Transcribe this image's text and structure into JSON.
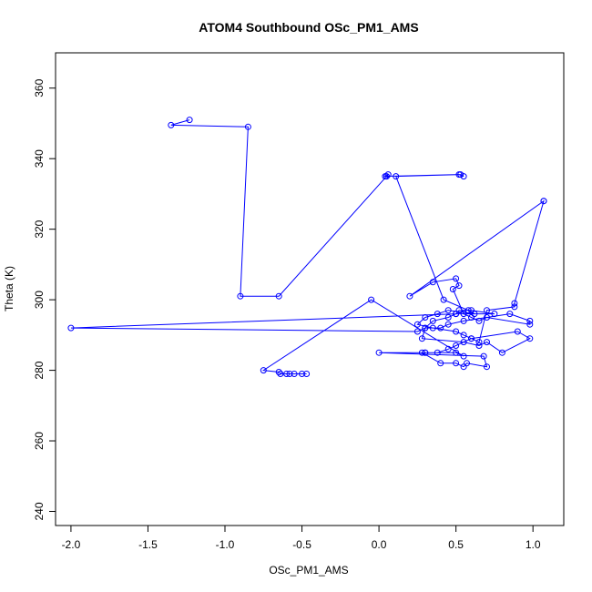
{
  "chart_data": {
    "type": "scatter",
    "title": "ATOM4 Southbound OSc_PM1_AMS",
    "xlabel": "OSc_PM1_AMS",
    "ylabel": "Theta (K)",
    "xlim": [
      -2.1,
      1.2
    ],
    "ylim": [
      236,
      370
    ],
    "x_ticks": [
      -2.0,
      -1.5,
      -1.0,
      -0.5,
      0.0,
      0.5,
      1.0
    ],
    "x_tick_labels": [
      "-2.0",
      "-1.5",
      "-1.0",
      "-0.5",
      "0.0",
      "0.5",
      "1.0"
    ],
    "y_ticks": [
      240,
      260,
      280,
      300,
      320,
      340,
      360
    ],
    "y_tick_labels": [
      "240",
      "260",
      "280",
      "300",
      "320",
      "340",
      "360"
    ],
    "grid": false,
    "series": [
      {
        "name": "OSc_PM1_AMS vs Theta",
        "color": "#0000ff",
        "marker": "open-circle",
        "connected": true,
        "x": [
          -1.23,
          -1.35,
          -0.85,
          -0.9,
          -0.65,
          0.05,
          0.06,
          0.04,
          0.52,
          0.55,
          0.53,
          0.11,
          0.42,
          0.58,
          0.62,
          0.45,
          0.38,
          0.3,
          0.25,
          0.35,
          0.5,
          0.55,
          0.6,
          0.65,
          0.7,
          0.88,
          0.88,
          1.07,
          1.07,
          0.2,
          0.35,
          0.5,
          0.52,
          0.48,
          0.55,
          0.6,
          0.65,
          0.7,
          0.98,
          0.98,
          0.85,
          0.55,
          0.45,
          0.4,
          0.3,
          0.25,
          -2.0,
          0.5,
          0.75,
          0.6,
          0.52,
          0.5,
          0.45,
          0.35,
          0.3,
          0.28,
          0.55,
          0.65,
          0.7,
          0.8,
          0.98,
          0.9,
          0.6,
          0.5,
          0.45,
          0.38,
          0.3,
          0.28,
          0.4,
          0.5,
          0.55,
          0.57,
          0.7,
          0.68,
          0.0,
          0.3,
          0.5,
          0.55,
          -0.05,
          -0.75,
          -0.65,
          -0.64,
          -0.6,
          -0.58,
          -0.55,
          -0.5,
          -0.47
        ],
        "y": [
          351,
          349.5,
          349,
          301,
          301,
          335,
          335.5,
          335,
          335.5,
          335,
          335.5,
          335,
          300,
          297,
          296,
          297,
          296,
          295,
          293,
          292,
          291,
          290,
          289,
          288,
          297,
          298,
          299,
          328,
          328,
          301,
          305,
          306,
          304,
          303,
          296,
          295,
          294,
          295,
          293,
          294,
          296,
          294,
          293,
          292,
          292,
          291,
          292,
          296,
          296,
          297,
          297,
          296,
          295,
          294,
          292,
          289,
          288,
          287,
          288,
          285,
          289,
          291,
          289,
          287,
          286,
          285,
          285,
          285,
          282,
          282,
          281,
          282,
          281,
          284,
          285,
          285,
          285,
          284,
          300,
          280,
          279.5,
          279,
          279,
          279,
          279,
          279,
          279
        ]
      }
    ]
  }
}
